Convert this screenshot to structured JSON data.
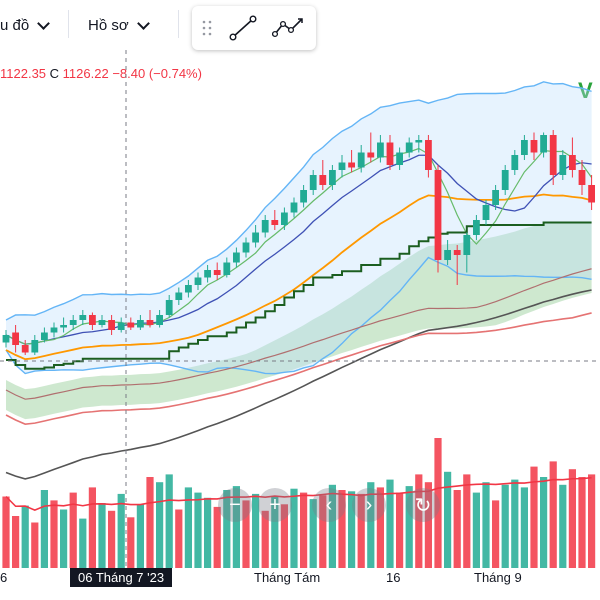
{
  "toolbar": {
    "chart_menu_label": "u đồ",
    "profile_menu_label": "Hồ sơ",
    "tools": [
      {
        "name": "trend-line-icon"
      },
      {
        "name": "path-icon"
      }
    ]
  },
  "legend": {
    "low_value": "1122.35",
    "close_key": "C",
    "close_value": "1126.22",
    "change": "−8.40 (−0.74%)"
  },
  "logo_text": "V",
  "x_axis": {
    "labels": [
      "6",
      "Tháng Tám",
      "16",
      "Tháng 9"
    ],
    "crosshair_label": "06 Tháng 7 '23"
  },
  "overlay_buttons": [
    {
      "name": "zoom-out-button",
      "icon": "−"
    },
    {
      "name": "zoom-in-button",
      "icon": "+"
    },
    {
      "name": "scroll-left-button",
      "icon": "‹"
    },
    {
      "name": "scroll-right-button",
      "icon": "›"
    },
    {
      "name": "reset-chart-button",
      "icon": "↻"
    }
  ],
  "colors": {
    "up": "#22ab94",
    "down": "#f23645",
    "bollinger": "#64b5f6",
    "ma_short": "#66bb6a",
    "ma_mid": "#3f51b5",
    "ma_orange": "#ff9800",
    "ma_dark": "#1b5e20",
    "ma_pink": "#e57373",
    "ma_black": "#555555"
  },
  "chart_data": {
    "type": "candlestick",
    "candles": [
      [
        "u",
        1099,
        1104,
        1097,
        1102
      ],
      [
        "d",
        1103,
        1106,
        1095,
        1098
      ],
      [
        "d",
        1098,
        1100,
        1094,
        1095
      ],
      [
        "u",
        1095,
        1102,
        1094,
        1100
      ],
      [
        "u",
        1100,
        1105,
        1099,
        1103
      ],
      [
        "u",
        1103,
        1107,
        1101,
        1105
      ],
      [
        "u",
        1105,
        1109,
        1103,
        1106
      ],
      [
        "u",
        1106,
        1110,
        1104,
        1108
      ],
      [
        "u",
        1108,
        1112,
        1106,
        1110
      ],
      [
        "d",
        1110,
        1111,
        1104,
        1106
      ],
      [
        "u",
        1106,
        1110,
        1105,
        1108
      ],
      [
        "d",
        1108,
        1110,
        1102,
        1104
      ],
      [
        "u",
        1104,
        1109,
        1103,
        1107
      ],
      [
        "d",
        1107,
        1109,
        1104,
        1105
      ],
      [
        "u",
        1105,
        1110,
        1104,
        1108
      ],
      [
        "d",
        1108,
        1112,
        1105,
        1106
      ],
      [
        "u",
        1106,
        1112,
        1105,
        1110
      ],
      [
        "u",
        1110,
        1118,
        1109,
        1116
      ],
      [
        "u",
        1116,
        1121,
        1114,
        1119
      ],
      [
        "u",
        1119,
        1124,
        1117,
        1122
      ],
      [
        "u",
        1122,
        1127,
        1120,
        1125
      ],
      [
        "u",
        1125,
        1130,
        1123,
        1128
      ],
      [
        "d",
        1128,
        1131,
        1124,
        1126
      ],
      [
        "u",
        1126,
        1133,
        1125,
        1131
      ],
      [
        "u",
        1131,
        1137,
        1129,
        1135
      ],
      [
        "u",
        1135,
        1141,
        1133,
        1139
      ],
      [
        "u",
        1139,
        1146,
        1137,
        1143
      ],
      [
        "u",
        1143,
        1150,
        1141,
        1148
      ],
      [
        "d",
        1148,
        1152,
        1144,
        1146
      ],
      [
        "u",
        1146,
        1153,
        1144,
        1151
      ],
      [
        "u",
        1151,
        1157,
        1149,
        1155
      ],
      [
        "u",
        1155,
        1162,
        1153,
        1160
      ],
      [
        "u",
        1160,
        1168,
        1158,
        1166
      ],
      [
        "d",
        1166,
        1172,
        1160,
        1162
      ],
      [
        "u",
        1162,
        1170,
        1160,
        1168
      ],
      [
        "u",
        1168,
        1174,
        1165,
        1171
      ],
      [
        "d",
        1171,
        1176,
        1167,
        1169
      ],
      [
        "u",
        1169,
        1178,
        1167,
        1175
      ],
      [
        "d",
        1175,
        1183,
        1171,
        1173
      ],
      [
        "u",
        1173,
        1182,
        1171,
        1179
      ],
      [
        "d",
        1179,
        1182,
        1168,
        1170
      ],
      [
        "u",
        1170,
        1177,
        1168,
        1175
      ],
      [
        "u",
        1175,
        1181,
        1173,
        1179
      ],
      [
        "u",
        1179,
        1182,
        1175,
        1180
      ],
      [
        "d",
        1180,
        1182,
        1165,
        1168
      ],
      [
        "d",
        1168,
        1170,
        1127,
        1132
      ],
      [
        "u",
        1132,
        1140,
        1130,
        1136
      ],
      [
        "d",
        1136,
        1138,
        1122,
        1134
      ],
      [
        "u",
        1134,
        1143,
        1127,
        1142
      ],
      [
        "u",
        1142,
        1150,
        1140,
        1148
      ],
      [
        "u",
        1148,
        1156,
        1146,
        1154
      ],
      [
        "u",
        1154,
        1162,
        1152,
        1160
      ],
      [
        "u",
        1160,
        1170,
        1158,
        1168
      ],
      [
        "u",
        1168,
        1176,
        1166,
        1174
      ],
      [
        "u",
        1174,
        1182,
        1172,
        1180
      ],
      [
        "d",
        1180,
        1183,
        1172,
        1175
      ],
      [
        "u",
        1175,
        1183,
        1173,
        1182
      ],
      [
        "d",
        1182,
        1184,
        1162,
        1166
      ],
      [
        "u",
        1166,
        1176,
        1164,
        1174
      ],
      [
        "d",
        1174,
        1181,
        1165,
        1168
      ],
      [
        "d",
        1168,
        1172,
        1158,
        1162
      ],
      [
        "d",
        1162,
        1166,
        1152,
        1155
      ]
    ],
    "volume": [
      [
        "d",
        55
      ],
      [
        "d",
        40
      ],
      [
        "u",
        48
      ],
      [
        "d",
        35
      ],
      [
        "u",
        60
      ],
      [
        "d",
        52
      ],
      [
        "u",
        45
      ],
      [
        "d",
        58
      ],
      [
        "u",
        38
      ],
      [
        "d",
        62
      ],
      [
        "u",
        50
      ],
      [
        "d",
        44
      ],
      [
        "u",
        57
      ],
      [
        "d",
        39
      ],
      [
        "u",
        49
      ],
      [
        "d",
        70
      ],
      [
        "u",
        66
      ],
      [
        "u",
        72
      ],
      [
        "d",
        45
      ],
      [
        "u",
        62
      ],
      [
        "u",
        58
      ],
      [
        "u",
        54
      ],
      [
        "d",
        47
      ],
      [
        "u",
        60
      ],
      [
        "u",
        63
      ],
      [
        "d",
        52
      ],
      [
        "u",
        57
      ],
      [
        "d",
        44
      ],
      [
        "u",
        55
      ],
      [
        "d",
        49
      ],
      [
        "u",
        61
      ],
      [
        "d",
        58
      ],
      [
        "u",
        53
      ],
      [
        "d",
        56
      ],
      [
        "u",
        64
      ],
      [
        "d",
        60
      ],
      [
        "u",
        59
      ],
      [
        "d",
        57
      ],
      [
        "u",
        66
      ],
      [
        "d",
        62
      ],
      [
        "u",
        68
      ],
      [
        "d",
        58
      ],
      [
        "u",
        63
      ],
      [
        "d",
        72
      ],
      [
        "d",
        66
      ],
      [
        "d",
        100
      ],
      [
        "u",
        74
      ],
      [
        "d",
        60
      ],
      [
        "d",
        72
      ],
      [
        "u",
        58
      ],
      [
        "u",
        66
      ],
      [
        "d",
        52
      ],
      [
        "u",
        64
      ],
      [
        "u",
        68
      ],
      [
        "u",
        62
      ],
      [
        "d",
        78
      ],
      [
        "u",
        70
      ],
      [
        "d",
        82
      ],
      [
        "u",
        64
      ],
      [
        "d",
        76
      ],
      [
        "d",
        70
      ],
      [
        "d",
        72
      ]
    ],
    "grid": false
  }
}
